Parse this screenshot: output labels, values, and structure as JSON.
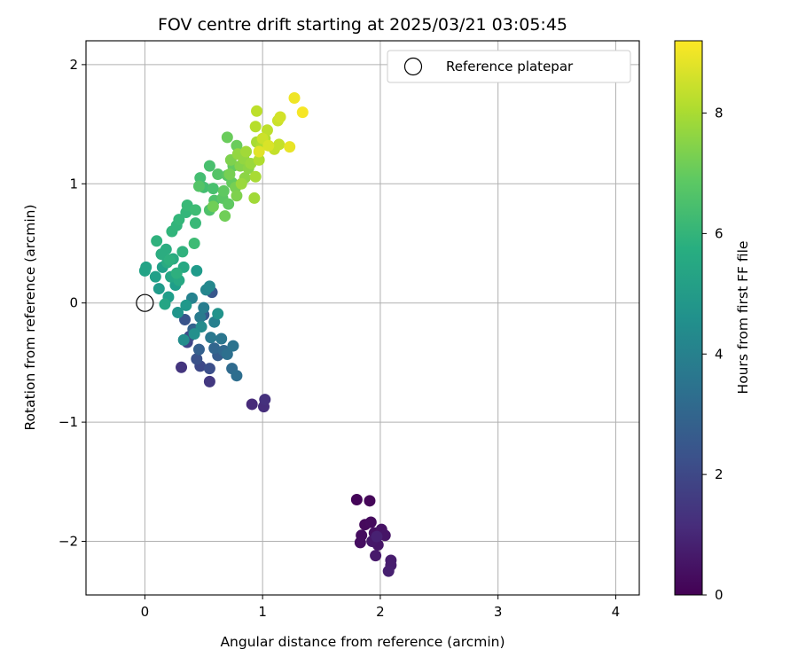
{
  "chart_data": {
    "type": "scatter",
    "title": "FOV centre drift starting at 2025/03/21 03:05:45",
    "xlabel": "Angular distance from reference (arcmin)",
    "ylabel": "Rotation from reference (arcmin)",
    "xlim": [
      -0.5,
      4.2
    ],
    "ylim": [
      -2.45,
      2.2
    ],
    "xticks": [
      0,
      1,
      2,
      3,
      4
    ],
    "yticks": [
      -2,
      -1,
      0,
      1,
      2
    ],
    "grid": true,
    "legend": {
      "position": "top-right",
      "entries": [
        "Reference platepar"
      ]
    },
    "reference_point": {
      "label": "Reference platepar",
      "x": 0,
      "y": 0
    },
    "colorbar": {
      "label": "Hours from first FF file",
      "min": 0,
      "max": 9.2,
      "ticks": [
        0,
        2,
        4,
        6,
        8
      ],
      "colormap": "viridis"
    },
    "series": [
      {
        "points": [
          [
            1.8,
            -1.65,
            0.1
          ],
          [
            1.91,
            -1.66,
            0.15
          ],
          [
            1.87,
            -1.86,
            0.2
          ],
          [
            1.92,
            -1.84,
            0.25
          ],
          [
            1.84,
            -1.95,
            0.3
          ],
          [
            1.83,
            -2.01,
            0.35
          ],
          [
            1.95,
            -1.93,
            0.4
          ],
          [
            2.01,
            -1.9,
            0.45
          ],
          [
            2.04,
            -1.95,
            0.5
          ],
          [
            1.98,
            -2.03,
            0.55
          ],
          [
            1.93,
            -2.0,
            0.6
          ],
          [
            1.96,
            -2.12,
            0.65
          ],
          [
            2.09,
            -2.16,
            0.7
          ],
          [
            2.09,
            -2.2,
            0.75
          ],
          [
            2.07,
            -2.25,
            0.8
          ],
          [
            1.97,
            -1.96,
            0.85
          ],
          [
            0.91,
            -0.85,
            1.1
          ],
          [
            1.01,
            -0.87,
            1.2
          ],
          [
            1.02,
            -0.81,
            1.3
          ],
          [
            0.31,
            -0.54,
            1.4
          ],
          [
            0.55,
            -0.66,
            1.5
          ],
          [
            0.36,
            -0.33,
            1.9
          ],
          [
            0.47,
            -0.53,
            2.0
          ],
          [
            0.38,
            -0.28,
            2.1
          ],
          [
            0.55,
            -0.55,
            2.2
          ],
          [
            0.44,
            -0.47,
            2.3
          ],
          [
            0.34,
            -0.14,
            2.4
          ],
          [
            0.57,
            0.09,
            2.5
          ],
          [
            0.5,
            -0.1,
            2.6
          ],
          [
            0.62,
            -0.44,
            2.7
          ],
          [
            0.46,
            -0.39,
            2.8
          ],
          [
            0.41,
            -0.22,
            2.9
          ],
          [
            0.59,
            -0.38,
            3.0
          ],
          [
            0.67,
            -0.4,
            3.1
          ],
          [
            0.74,
            -0.55,
            3.2
          ],
          [
            0.78,
            -0.61,
            3.3
          ],
          [
            0.7,
            -0.43,
            3.4
          ],
          [
            0.75,
            -0.36,
            3.5
          ],
          [
            0.65,
            -0.3,
            3.6
          ],
          [
            0.56,
            -0.29,
            3.7
          ],
          [
            0.47,
            -0.12,
            3.8
          ],
          [
            0.5,
            -0.04,
            3.9
          ],
          [
            0.59,
            -0.16,
            4.0
          ],
          [
            0.4,
            0.04,
            4.1
          ],
          [
            0.52,
            0.11,
            4.2
          ],
          [
            0.55,
            0.14,
            4.3
          ],
          [
            0.48,
            -0.2,
            4.4
          ],
          [
            0.33,
            -0.31,
            4.5
          ],
          [
            0.42,
            -0.26,
            4.6
          ],
          [
            0.62,
            -0.09,
            4.7
          ],
          [
            0.28,
            -0.08,
            4.8
          ],
          [
            0.35,
            -0.02,
            4.9
          ],
          [
            0.44,
            0.27,
            5.0
          ],
          [
            0.12,
            0.12,
            5.0
          ],
          [
            0.2,
            0.05,
            5.1
          ],
          [
            0.26,
            0.15,
            5.1
          ],
          [
            0.15,
            0.3,
            5.2
          ],
          [
            0.09,
            0.22,
            5.2
          ],
          [
            0.0,
            0.27,
            5.3
          ],
          [
            0.01,
            0.3,
            5.3
          ],
          [
            0.17,
            -0.01,
            5.4
          ],
          [
            0.22,
            0.22,
            5.4
          ],
          [
            0.29,
            0.19,
            5.5
          ],
          [
            0.33,
            0.3,
            5.5
          ],
          [
            0.19,
            0.34,
            5.6
          ],
          [
            0.24,
            0.37,
            5.6
          ],
          [
            0.14,
            0.41,
            5.7
          ],
          [
            0.18,
            0.45,
            5.7
          ],
          [
            0.21,
            0.36,
            5.8
          ],
          [
            0.27,
            0.25,
            5.8
          ],
          [
            0.1,
            0.52,
            5.9
          ],
          [
            0.32,
            0.43,
            5.9
          ],
          [
            0.23,
            0.6,
            6.0
          ],
          [
            0.27,
            0.65,
            6.0
          ],
          [
            0.29,
            0.7,
            6.1
          ],
          [
            0.35,
            0.76,
            6.1
          ],
          [
            0.36,
            0.82,
            6.2
          ],
          [
            0.43,
            0.67,
            6.2
          ],
          [
            0.42,
            0.5,
            6.3
          ],
          [
            0.43,
            0.78,
            6.3
          ],
          [
            0.5,
            0.97,
            6.4
          ],
          [
            0.47,
            1.05,
            6.4
          ],
          [
            0.55,
            1.15,
            6.5
          ],
          [
            0.58,
            0.96,
            6.5
          ],
          [
            0.55,
            0.78,
            6.6
          ],
          [
            0.59,
            0.86,
            6.6
          ],
          [
            0.62,
            1.08,
            6.7
          ],
          [
            0.46,
            0.98,
            6.7
          ],
          [
            0.66,
            0.88,
            6.8
          ],
          [
            0.7,
            1.07,
            6.8
          ],
          [
            0.67,
            0.94,
            6.9
          ],
          [
            0.71,
            0.83,
            6.9
          ],
          [
            0.74,
            1.01,
            7.0
          ],
          [
            0.75,
            1.15,
            7.0
          ],
          [
            0.78,
            1.32,
            7.1
          ],
          [
            0.7,
            1.39,
            7.1
          ],
          [
            0.68,
            0.73,
            7.2
          ],
          [
            0.58,
            0.81,
            7.2
          ],
          [
            0.72,
            1.08,
            7.3
          ],
          [
            0.77,
            0.97,
            7.3
          ],
          [
            0.73,
            1.2,
            7.4
          ],
          [
            0.78,
            0.9,
            7.4
          ],
          [
            0.81,
            1.15,
            7.5
          ],
          [
            0.85,
            1.05,
            7.6
          ],
          [
            0.88,
            1.13,
            7.6
          ],
          [
            0.79,
            1.25,
            7.7
          ],
          [
            0.84,
            1.21,
            7.7
          ],
          [
            0.82,
            1.0,
            7.8
          ],
          [
            0.9,
            1.17,
            7.8
          ],
          [
            0.86,
            1.27,
            7.9
          ],
          [
            0.93,
            0.88,
            7.9
          ],
          [
            0.94,
            1.06,
            8.0
          ],
          [
            0.95,
            1.35,
            8.0
          ],
          [
            0.97,
            1.2,
            8.1
          ],
          [
            0.99,
            1.32,
            8.1
          ],
          [
            1.02,
            1.38,
            8.2
          ],
          [
            0.94,
            1.48,
            8.2
          ],
          [
            0.95,
            1.61,
            8.3
          ],
          [
            1.04,
            1.45,
            8.3
          ],
          [
            1.1,
            1.29,
            8.4
          ],
          [
            1.14,
            1.33,
            8.4
          ],
          [
            1.0,
            1.38,
            8.5
          ],
          [
            1.13,
            1.53,
            8.5
          ],
          [
            1.15,
            1.56,
            8.6
          ],
          [
            1.05,
            1.32,
            8.7
          ],
          [
            0.97,
            1.27,
            8.8
          ],
          [
            1.23,
            1.31,
            8.9
          ],
          [
            1.27,
            1.72,
            9.0
          ],
          [
            1.34,
            1.6,
            9.1
          ]
        ]
      }
    ]
  }
}
